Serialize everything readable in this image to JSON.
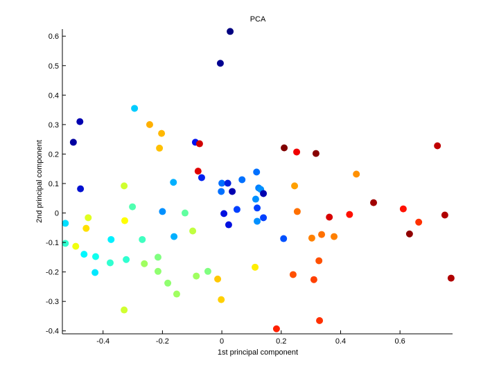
{
  "chart_data": {
    "type": "scatter",
    "title": "PCA",
    "xlabel": "1st principal component",
    "ylabel": "2nd principal component",
    "xlim": [
      -0.537,
      0.777
    ],
    "ylim": [
      -0.41,
      0.624
    ],
    "xticks": [
      -0.4,
      -0.2,
      0,
      0.2,
      0.4,
      0.6
    ],
    "xtick_labels": [
      "-0.4",
      "-0.2",
      "0",
      "0.2",
      "0.4",
      "0.6"
    ],
    "yticks": [
      -0.4,
      -0.3,
      -0.2,
      -0.1,
      0,
      0.1,
      0.2,
      0.3,
      0.4,
      0.5,
      0.6
    ],
    "ytick_labels": [
      "-0.4",
      "-0.3",
      "-0.2",
      "-0.1",
      "0",
      "0.1",
      "0.2",
      "0.3",
      "0.4",
      "0.5",
      "0.6"
    ],
    "grid": false,
    "colormap": "jet",
    "points": [
      {
        "x": 0.028,
        "y": 0.616,
        "color": "#000080"
      },
      {
        "x": -0.005,
        "y": 0.508,
        "color": "#000090"
      },
      {
        "x": -0.294,
        "y": 0.355,
        "color": "#00ccff"
      },
      {
        "x": -0.478,
        "y": 0.31,
        "color": "#0000b0"
      },
      {
        "x": -0.5,
        "y": 0.24,
        "color": "#0000a0"
      },
      {
        "x": -0.243,
        "y": 0.3,
        "color": "#ffb000"
      },
      {
        "x": -0.203,
        "y": 0.27,
        "color": "#ffb800"
      },
      {
        "x": -0.21,
        "y": 0.22,
        "color": "#ffc000"
      },
      {
        "x": -0.089,
        "y": 0.24,
        "color": "#0010f0"
      },
      {
        "x": -0.075,
        "y": 0.235,
        "color": "#d00000"
      },
      {
        "x": -0.08,
        "y": 0.142,
        "color": "#e00000"
      },
      {
        "x": -0.068,
        "y": 0.12,
        "color": "#0020f0"
      },
      {
        "x": -0.163,
        "y": 0.104,
        "color": "#00b0ff"
      },
      {
        "x": 0.0,
        "y": 0.101,
        "color": "#0070ff"
      },
      {
        "x": 0.02,
        "y": 0.101,
        "color": "#0020e0"
      },
      {
        "x": 0.068,
        "y": 0.113,
        "color": "#0070ff"
      },
      {
        "x": 0.117,
        "y": 0.139,
        "color": "#0070ff"
      },
      {
        "x": -0.476,
        "y": 0.082,
        "color": "#0010d0"
      },
      {
        "x": -0.329,
        "y": 0.092,
        "color": "#d0ff30"
      },
      {
        "x": -0.002,
        "y": 0.073,
        "color": "#0070ff"
      },
      {
        "x": 0.035,
        "y": 0.073,
        "color": "#0000b0"
      },
      {
        "x": -0.301,
        "y": 0.021,
        "color": "#50ffb0"
      },
      {
        "x": -0.2,
        "y": 0.005,
        "color": "#0090ff"
      },
      {
        "x": -0.124,
        "y": 0.0,
        "color": "#60ffa0"
      },
      {
        "x": 0.007,
        "y": -0.002,
        "color": "#0010e0"
      },
      {
        "x": 0.051,
        "y": 0.012,
        "color": "#0040ff"
      },
      {
        "x": 0.114,
        "y": 0.047,
        "color": "#0090ff"
      },
      {
        "x": 0.119,
        "y": 0.017,
        "color": "#0040ff"
      },
      {
        "x": 0.119,
        "y": -0.028,
        "color": "#0090ff"
      },
      {
        "x": 0.023,
        "y": -0.04,
        "color": "#0010e0"
      },
      {
        "x": -0.527,
        "y": -0.035,
        "color": "#00e0ff"
      },
      {
        "x": -0.45,
        "y": -0.016,
        "color": "#e0ff20"
      },
      {
        "x": -0.457,
        "y": -0.052,
        "color": "#ffe000"
      },
      {
        "x": -0.327,
        "y": -0.026,
        "color": "#ffff00"
      },
      {
        "x": -0.098,
        "y": -0.061,
        "color": "#c0ff40"
      },
      {
        "x": -0.161,
        "y": -0.08,
        "color": "#00b0ff"
      },
      {
        "x": -0.373,
        "y": -0.09,
        "color": "#00f0ff"
      },
      {
        "x": -0.268,
        "y": -0.09,
        "color": "#40ffc0"
      },
      {
        "x": -0.527,
        "y": -0.103,
        "color": "#30ffd0"
      },
      {
        "x": -0.492,
        "y": -0.113,
        "color": "#f0ff10"
      },
      {
        "x": -0.464,
        "y": -0.14,
        "color": "#00f8ff"
      },
      {
        "x": -0.425,
        "y": -0.148,
        "color": "#10ffee"
      },
      {
        "x": -0.322,
        "y": -0.158,
        "color": "#30ffd0"
      },
      {
        "x": -0.215,
        "y": -0.15,
        "color": "#80ff80"
      },
      {
        "x": -0.376,
        "y": -0.169,
        "color": "#30ffd0"
      },
      {
        "x": -0.261,
        "y": -0.172,
        "color": "#a0ff60"
      },
      {
        "x": 0.112,
        "y": -0.184,
        "color": "#ffee00"
      },
      {
        "x": -0.427,
        "y": -0.202,
        "color": "#00e8ff"
      },
      {
        "x": -0.215,
        "y": -0.198,
        "color": "#90ff70"
      },
      {
        "x": -0.047,
        "y": -0.198,
        "color": "#80ff80"
      },
      {
        "x": -0.086,
        "y": -0.214,
        "color": "#a0ff60"
      },
      {
        "x": -0.014,
        "y": -0.224,
        "color": "#ffc800"
      },
      {
        "x": -0.182,
        "y": -0.238,
        "color": "#90ff70"
      },
      {
        "x": -0.152,
        "y": -0.275,
        "color": "#a0ff60"
      },
      {
        "x": -0.002,
        "y": -0.294,
        "color": "#ffd000"
      },
      {
        "x": -0.329,
        "y": -0.329,
        "color": "#d0ff30"
      },
      {
        "x": 0.21,
        "y": 0.221,
        "color": "#800000"
      },
      {
        "x": 0.252,
        "y": 0.207,
        "color": "#f00000"
      },
      {
        "x": 0.317,
        "y": 0.202,
        "color": "#880000"
      },
      {
        "x": 0.726,
        "y": 0.228,
        "color": "#c00000"
      },
      {
        "x": 0.453,
        "y": 0.132,
        "color": "#ff9000"
      },
      {
        "x": 0.245,
        "y": 0.092,
        "color": "#ffa000"
      },
      {
        "x": 0.124,
        "y": 0.085,
        "color": "#0080ff"
      },
      {
        "x": 0.131,
        "y": 0.08,
        "color": "#0090ff"
      },
      {
        "x": 0.14,
        "y": 0.066,
        "color": "#0000b0"
      },
      {
        "x": 0.511,
        "y": 0.035,
        "color": "#a00000"
      },
      {
        "x": 0.611,
        "y": 0.014,
        "color": "#ff1000"
      },
      {
        "x": 0.751,
        "y": -0.007,
        "color": "#b00000"
      },
      {
        "x": 0.254,
        "y": 0.005,
        "color": "#ff7000"
      },
      {
        "x": 0.362,
        "y": -0.014,
        "color": "#d80000"
      },
      {
        "x": 0.43,
        "y": -0.005,
        "color": "#ff1000"
      },
      {
        "x": 0.663,
        "y": -0.031,
        "color": "#ff3000"
      },
      {
        "x": 0.14,
        "y": -0.016,
        "color": "#0040ff"
      },
      {
        "x": 0.632,
        "y": -0.071,
        "color": "#900000"
      },
      {
        "x": 0.208,
        "y": -0.087,
        "color": "#0050ff"
      },
      {
        "x": 0.303,
        "y": -0.085,
        "color": "#ff8000"
      },
      {
        "x": 0.336,
        "y": -0.073,
        "color": "#ff7000"
      },
      {
        "x": 0.378,
        "y": -0.08,
        "color": "#ff8000"
      },
      {
        "x": 0.327,
        "y": -0.162,
        "color": "#ff5000"
      },
      {
        "x": 0.24,
        "y": -0.209,
        "color": "#ff5000"
      },
      {
        "x": 0.31,
        "y": -0.226,
        "color": "#ff4000"
      },
      {
        "x": 0.772,
        "y": -0.221,
        "color": "#b00000"
      },
      {
        "x": 0.329,
        "y": -0.365,
        "color": "#ff3000"
      },
      {
        "x": 0.184,
        "y": -0.393,
        "color": "#ff2000"
      }
    ]
  }
}
